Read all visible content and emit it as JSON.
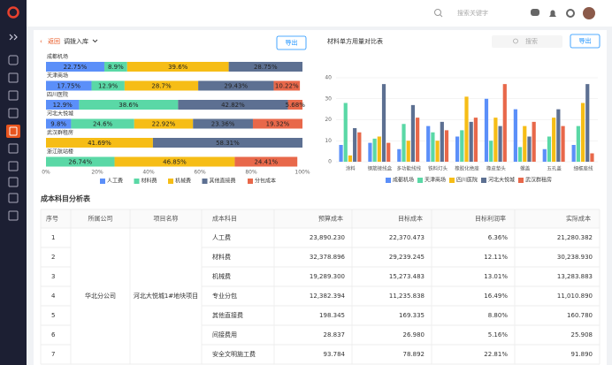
{
  "topbar": {
    "search_placeholder": "搜索关键字"
  },
  "header": {
    "back": "返回",
    "title": "调拨入库",
    "export": "导出"
  },
  "right_toolbar": {
    "search_placeholder": "搜索",
    "export": "导出"
  },
  "chart_data": [
    {
      "type": "stacked_bar_h",
      "categories": [
        "成都机场",
        "天津商场",
        "四川医院",
        "河北大悦城",
        "武汉群租房",
        "浙江航站楼"
      ],
      "series": [
        {
          "name": "人工费",
          "color": "#5b8ff9",
          "values": [
            22.75,
            17.75,
            12.9,
            9.8,
            null,
            null
          ],
          "value_labels": [
            "22.75%",
            "17.75%",
            "12.9%",
            "9.8%",
            null,
            null
          ]
        },
        {
          "name": "材料费",
          "color": "#5ad8a6",
          "values": [
            8.9,
            12.9,
            38.6,
            24.6,
            null,
            26.74
          ],
          "value_labels": [
            "8.9%",
            "12.9%",
            "38.6%",
            "24.6%",
            null,
            "26.74%"
          ]
        },
        {
          "name": "机械费",
          "color": "#f6bd16",
          "values": [
            39.6,
            28.7,
            null,
            22.92,
            41.69,
            46.85
          ],
          "value_labels": [
            "39.6%",
            "28.7%",
            null,
            "22.92%",
            "41.69%",
            "46.85%"
          ]
        },
        {
          "name": "其他直接费",
          "color": "#5d7092",
          "values": [
            28.75,
            29.43,
            42.82,
            23.36,
            58.31,
            null
          ],
          "value_labels": [
            "28.75%",
            "29.43%",
            "42.82%",
            "23.36%",
            "58.31%",
            null
          ]
        },
        {
          "name": "分包成本",
          "color": "#e8684a",
          "values": [
            null,
            10.22,
            5.68,
            19.32,
            null,
            24.41
          ],
          "value_labels": [
            null,
            "10.22%",
            "5.68%",
            "19.32%",
            null,
            "24.41%"
          ]
        }
      ],
      "xlim": [
        0,
        100
      ],
      "xticks": [
        {
          "value": 0,
          "label": "0%"
        },
        {
          "value": 20,
          "label": "20%"
        },
        {
          "value": 40,
          "label": "40%"
        },
        {
          "value": 60,
          "label": "60%"
        },
        {
          "value": 80,
          "label": "80%"
        },
        {
          "value": 100,
          "label": "100%"
        }
      ]
    },
    {
      "type": "bar",
      "title": "材料单方用量对比表",
      "categories": [
        "涂料",
        "钢筋接线盒",
        "多功能线线",
        "铁料灯头",
        "橡胶化绝座",
        "橡皮垫头",
        "螺盖",
        "五孔盖",
        "细框座线"
      ],
      "series": [
        {
          "name": "成都机场",
          "color": "#5b8ff9",
          "values": [
            8,
            9,
            6,
            17,
            12,
            30,
            25,
            6,
            8
          ]
        },
        {
          "name": "天津商场",
          "color": "#5ad8a6",
          "values": [
            28,
            11,
            18,
            14,
            15,
            10,
            7,
            12,
            17
          ]
        },
        {
          "name": "四川医院",
          "color": "#f6bd16",
          "values": [
            3,
            12,
            10,
            10,
            31,
            21,
            17,
            21,
            28
          ]
        },
        {
          "name": "河北大悦城",
          "color": "#5d7092",
          "values": [
            16,
            37,
            27,
            19,
            19,
            17,
            12,
            25,
            37
          ]
        },
        {
          "name": "武汉群租房",
          "color": "#e8684a",
          "values": [
            14,
            9,
            21,
            15,
            21,
            37,
            19,
            17,
            4
          ]
        }
      ],
      "ylim": [
        0,
        40
      ],
      "yticks": [
        0,
        10,
        20,
        30,
        40
      ],
      "grid": true
    }
  ],
  "table": {
    "title": "成本科目分析表",
    "headers": [
      "序号",
      "所属公司",
      "项目名称",
      "成本科目",
      "预算成本",
      "目标成本",
      "目标利润率",
      "实际成本"
    ],
    "company": "华北分公司",
    "project": "河北大悦城1#地块项目",
    "rows": [
      [
        "1",
        "人工费",
        "23,890.230",
        "22,370.473",
        "6.36%",
        "21,280.382"
      ],
      [
        "2",
        "材料费",
        "32,378.896",
        "29,239.245",
        "12.11%",
        "30,238.930"
      ],
      [
        "3",
        "机械费",
        "19,289.300",
        "15,273.483",
        "13.01%",
        "13,283.883"
      ],
      [
        "4",
        "专业分包",
        "12,382.394",
        "11,235.838",
        "16.49%",
        "11,010.890"
      ],
      [
        "5",
        "其他直接费",
        "198.345",
        "169.335",
        "8.80%",
        "160.780"
      ],
      [
        "6",
        "间接费用",
        "28.837",
        "26.980",
        "5.16%",
        "25.908"
      ],
      [
        "7",
        "安全文明施工费",
        "93.784",
        "78.892",
        "22.81%",
        "91.890"
      ]
    ]
  }
}
